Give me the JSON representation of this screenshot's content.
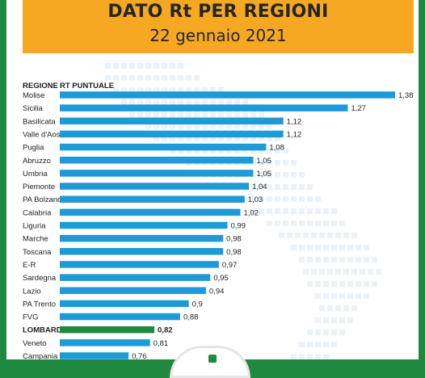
{
  "header": {
    "title": "DATO Rt PER REGIONI",
    "subtitle": "22 gennaio 2021"
  },
  "colors": {
    "background_frame": "#1f8a3f",
    "header_band": "#f7a823",
    "bar": "#1e9ad6",
    "highlight_bar": "#1f8a3f",
    "map_dots": "#dbe9f3"
  },
  "chart_data": {
    "type": "bar",
    "orientation": "horizontal",
    "title": "DATO Rt PER REGIONI",
    "subtitle": "22 gennaio 2021",
    "column_headers": [
      "REGIONE",
      "RT PUNTUALE"
    ],
    "categories": [
      "Molise",
      "Sicilia",
      "Basilicata",
      "Valle d'Aosta",
      "Puglia",
      "Abruzzo",
      "Umbria",
      "Piemonte",
      "PA Bolzano",
      "Calabria",
      "Liguria",
      "Marche",
      "Toscana",
      "E-R",
      "Sardegna",
      "Lazio",
      "PA Trento",
      "FVG",
      "LOMBARDIA",
      "Veneto",
      "Campania"
    ],
    "values": [
      1.38,
      1.27,
      1.12,
      1.12,
      1.08,
      1.05,
      1.05,
      1.04,
      1.03,
      1.02,
      0.99,
      0.98,
      0.98,
      0.97,
      0.95,
      0.94,
      0.9,
      0.88,
      0.82,
      0.81,
      0.76
    ],
    "value_labels": [
      "1,38",
      "1,27",
      "1,12",
      "1,12",
      "1,08",
      "1,05",
      "1,05",
      "1,04",
      "1,03",
      "1,02",
      "0,99",
      "0,98",
      "0,98",
      "0,97",
      "0,95",
      "0,94",
      "0,9",
      "0,88",
      "0,82",
      "0,81",
      "0,76"
    ],
    "highlight": "LOMBARDIA",
    "xlim": [
      0.6,
      1.38
    ],
    "grid": false,
    "legend": "none"
  }
}
